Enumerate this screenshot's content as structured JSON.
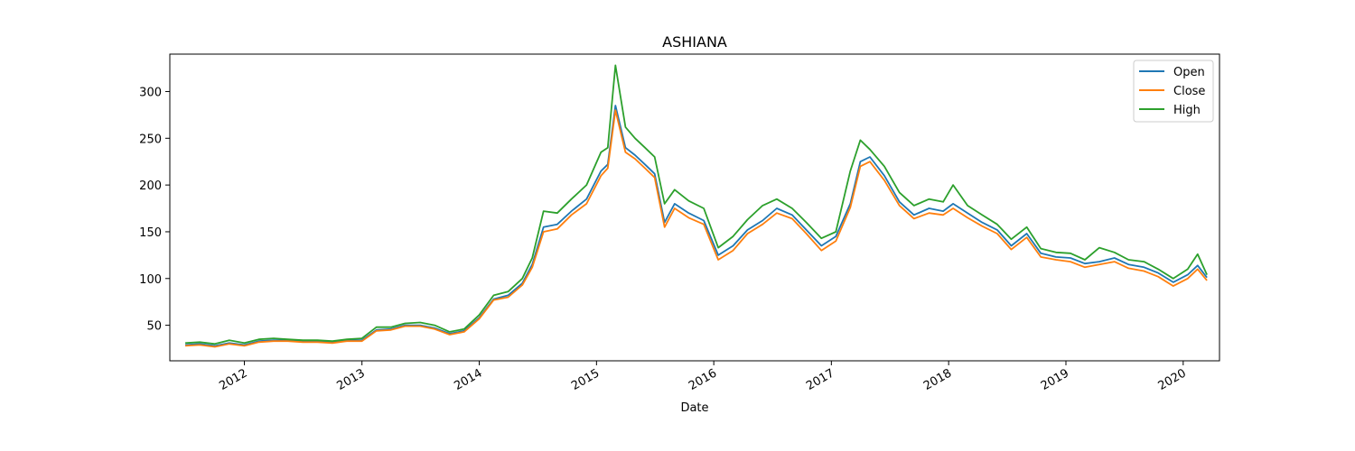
{
  "chart_data": {
    "type": "line",
    "title": "ASHIANA",
    "xlabel": "Date",
    "ylabel": "",
    "xlim": [
      "2011-05-14",
      "2020-04-23"
    ],
    "ylim": [
      12,
      340
    ],
    "x_ticks": [
      "2012-01-01",
      "2013-01-01",
      "2014-01-01",
      "2015-01-01",
      "2016-01-01",
      "2017-01-01",
      "2018-01-01",
      "2019-01-01",
      "2020-01-01"
    ],
    "x_tick_labels": [
      "2012",
      "2013",
      "2014",
      "2015",
      "2016",
      "2017",
      "2018",
      "2019",
      "2020"
    ],
    "y_ticks": [
      50,
      100,
      150,
      200,
      250,
      300
    ],
    "y_tick_labels": [
      "50",
      "100",
      "150",
      "200",
      "250",
      "300"
    ],
    "grid": false,
    "legend_position": "top-right",
    "x": [
      "2011-07-01",
      "2011-08-15",
      "2011-10-01",
      "2011-11-15",
      "2012-01-01",
      "2012-02-15",
      "2012-04-01",
      "2012-05-15",
      "2012-07-01",
      "2012-08-15",
      "2012-10-01",
      "2012-11-15",
      "2013-01-01",
      "2013-02-15",
      "2013-04-01",
      "2013-05-15",
      "2013-07-01",
      "2013-08-15",
      "2013-10-01",
      "2013-11-15",
      "2014-01-01",
      "2014-02-15",
      "2014-04-01",
      "2014-05-15",
      "2014-06-15",
      "2014-07-20",
      "2014-09-01",
      "2014-10-15",
      "2014-12-01",
      "2015-01-15",
      "2015-02-05",
      "2015-03-01",
      "2015-04-01",
      "2015-05-01",
      "2015-06-01",
      "2015-07-01",
      "2015-08-01",
      "2015-09-01",
      "2015-10-15",
      "2015-12-01",
      "2016-01-15",
      "2016-03-01",
      "2016-04-15",
      "2016-06-01",
      "2016-07-15",
      "2016-09-01",
      "2016-10-15",
      "2016-12-01",
      "2017-01-15",
      "2017-03-01",
      "2017-04-01",
      "2017-05-01",
      "2017-06-15",
      "2017-08-01",
      "2017-09-15",
      "2017-11-01",
      "2017-12-15",
      "2018-01-15",
      "2018-03-01",
      "2018-04-15",
      "2018-06-01",
      "2018-07-15",
      "2018-09-01",
      "2018-10-15",
      "2018-12-01",
      "2019-01-15",
      "2019-03-01",
      "2019-04-15",
      "2019-06-01",
      "2019-07-15",
      "2019-09-01",
      "2019-10-15",
      "2019-12-01",
      "2020-01-15",
      "2020-02-15",
      "2020-03-15"
    ],
    "series": [
      {
        "name": "Open",
        "color": "#1f77b4",
        "values": [
          29,
          30,
          28,
          31,
          29,
          33,
          34,
          34,
          33,
          33,
          32,
          34,
          34,
          45,
          46,
          50,
          50,
          47,
          41,
          44,
          58,
          78,
          82,
          95,
          115,
          155,
          158,
          172,
          185,
          215,
          222,
          285,
          240,
          232,
          222,
          212,
          160,
          180,
          170,
          162,
          125,
          135,
          152,
          162,
          175,
          168,
          152,
          135,
          145,
          180,
          225,
          230,
          210,
          182,
          168,
          175,
          172,
          180,
          170,
          160,
          152,
          135,
          148,
          127,
          123,
          122,
          116,
          118,
          122,
          115,
          112,
          106,
          96,
          104,
          114,
          101
        ]
      },
      {
        "name": "Close",
        "color": "#ff7f0e",
        "values": [
          28,
          29,
          27,
          30,
          28,
          32,
          33,
          33,
          32,
          32,
          31,
          33,
          33,
          44,
          45,
          49,
          49,
          46,
          40,
          43,
          57,
          77,
          80,
          93,
          112,
          150,
          153,
          168,
          180,
          210,
          218,
          280,
          235,
          228,
          218,
          208,
          155,
          175,
          165,
          158,
          120,
          130,
          148,
          158,
          170,
          164,
          148,
          130,
          140,
          176,
          220,
          225,
          205,
          178,
          164,
          170,
          168,
          175,
          165,
          156,
          148,
          131,
          144,
          123,
          120,
          118,
          112,
          115,
          118,
          111,
          108,
          102,
          92,
          100,
          110,
          98
        ]
      },
      {
        "name": "High",
        "color": "#2ca02c",
        "values": [
          31,
          32,
          30,
          34,
          31,
          35,
          36,
          35,
          34,
          34,
          33,
          35,
          36,
          48,
          48,
          52,
          53,
          50,
          43,
          46,
          61,
          82,
          86,
          100,
          122,
          172,
          170,
          185,
          200,
          235,
          240,
          328,
          262,
          250,
          240,
          230,
          180,
          195,
          183,
          175,
          133,
          145,
          163,
          178,
          185,
          175,
          160,
          143,
          150,
          215,
          248,
          238,
          220,
          192,
          178,
          185,
          182,
          200,
          178,
          168,
          158,
          142,
          155,
          132,
          128,
          127,
          120,
          133,
          128,
          120,
          118,
          110,
          100,
          110,
          126,
          104
        ]
      }
    ]
  }
}
